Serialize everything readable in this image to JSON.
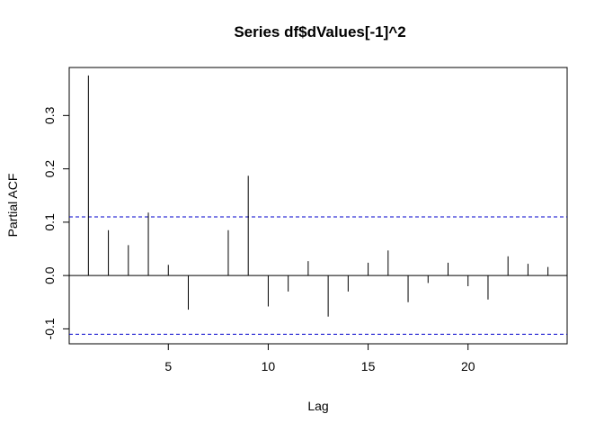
{
  "chart_data": {
    "type": "bar",
    "title": "Series  df$dValues[-1]^2",
    "xlabel": "Lag",
    "ylabel": "Partial ACF",
    "xlim": [
      0.04,
      24.96
    ],
    "ylim": [
      -0.128,
      0.39
    ],
    "x_ticks": [
      5,
      10,
      15,
      20
    ],
    "y_ticks": [
      -0.1,
      0.0,
      0.1,
      0.2,
      0.3
    ],
    "y_tick_labels": [
      "-0.1",
      "0.0",
      "0.1",
      "0.2",
      "0.3"
    ],
    "grid": false,
    "confidence_bound": 0.11,
    "confidence_color": "#0000cc",
    "lags": [
      1,
      2,
      3,
      4,
      5,
      6,
      7,
      8,
      9,
      10,
      11,
      12,
      13,
      14,
      15,
      16,
      17,
      18,
      19,
      20,
      21,
      22,
      23,
      24
    ],
    "values": [
      0.375,
      0.085,
      0.057,
      0.118,
      0.02,
      -0.064,
      0.0,
      0.085,
      0.187,
      -0.058,
      -0.03,
      0.027,
      -0.077,
      -0.03,
      0.024,
      0.047,
      -0.05,
      -0.014,
      0.024,
      -0.02,
      -0.045,
      0.036,
      0.022,
      0.016
    ]
  }
}
